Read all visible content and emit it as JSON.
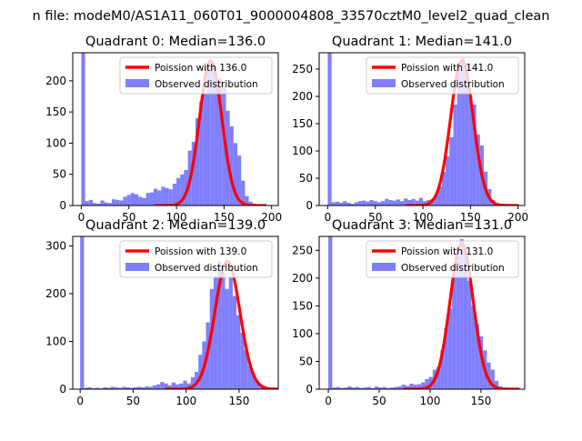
{
  "figure": {
    "suptitle": "n file: modeM0/AS1A11_060T01_9000004808_33570cztM0_level2_quad_clean"
  },
  "colors": {
    "hist": "#7f7fff",
    "poisson": "#ff0000",
    "axis": "#000000",
    "background": "#ffffff"
  },
  "chart_data": [
    {
      "type": "bar",
      "title": "Quadrant 0: Median=136.0",
      "xlim": [
        -9,
        207
      ],
      "ylim": [
        0,
        245
      ],
      "xticks": [
        0,
        50,
        100,
        150,
        200
      ],
      "xtick_labels": [
        "0",
        "50",
        "100",
        "150",
        "200"
      ],
      "yticks": [
        0,
        50,
        100,
        150,
        200
      ],
      "ytick_labels": [
        "0",
        "50",
        "100",
        "150",
        "200"
      ],
      "bin_width": 4,
      "bins_x": [
        0,
        4,
        8,
        12,
        16,
        20,
        24,
        28,
        32,
        36,
        40,
        44,
        48,
        52,
        56,
        60,
        64,
        68,
        72,
        76,
        80,
        84,
        88,
        92,
        96,
        100,
        104,
        108,
        112,
        116,
        120,
        124,
        128,
        132,
        136,
        140,
        144,
        148,
        152,
        156,
        160,
        164,
        168,
        172,
        176,
        180,
        184,
        188
      ],
      "bins_y": [
        245,
        7,
        9,
        4,
        3,
        8,
        5,
        4,
        10,
        9,
        8,
        14,
        17,
        20,
        18,
        14,
        12,
        20,
        21,
        27,
        24,
        30,
        28,
        26,
        35,
        44,
        50,
        57,
        88,
        102,
        140,
        167,
        179,
        225,
        225,
        199,
        204,
        193,
        152,
        127,
        100,
        80,
        40,
        15,
        6,
        3,
        2,
        1
      ],
      "legend": [
        "Poission with 136.0",
        "Observed distribution"
      ],
      "legend_position": "upper right",
      "poisson_mean": 136.0,
      "poisson_peak": 232,
      "poisson_sigma": 11.7
    },
    {
      "type": "bar",
      "title": "Quadrant 1: Median=141.0",
      "xlim": [
        -9,
        207
      ],
      "ylim": [
        0,
        280
      ],
      "xticks": [
        0,
        50,
        100,
        150,
        200
      ],
      "xtick_labels": [
        "0",
        "50",
        "100",
        "150",
        "200"
      ],
      "yticks": [
        0,
        50,
        100,
        150,
        200,
        250
      ],
      "ytick_labels": [
        "0",
        "50",
        "100",
        "150",
        "200",
        "250"
      ],
      "bin_width": 4,
      "bins_x": [
        0,
        4,
        8,
        12,
        16,
        20,
        24,
        28,
        32,
        36,
        40,
        44,
        48,
        52,
        56,
        60,
        64,
        68,
        72,
        76,
        80,
        84,
        88,
        92,
        96,
        100,
        104,
        108,
        112,
        116,
        120,
        124,
        128,
        132,
        136,
        140,
        144,
        148,
        152,
        156,
        160,
        164,
        168,
        172,
        176,
        180,
        184,
        188
      ],
      "bins_y": [
        280,
        6,
        7,
        5,
        8,
        5,
        3,
        6,
        8,
        9,
        7,
        10,
        8,
        6,
        8,
        12,
        10,
        9,
        11,
        8,
        13,
        10,
        12,
        9,
        14,
        8,
        10,
        12,
        20,
        35,
        62,
        90,
        125,
        185,
        250,
        270,
        258,
        200,
        185,
        130,
        110,
        62,
        30,
        10,
        4,
        2,
        1,
        1
      ],
      "legend": [
        "Poission with 141.0",
        "Observed distribution"
      ],
      "legend_position": "upper right",
      "poisson_mean": 141.0,
      "poisson_peak": 265,
      "poisson_sigma": 11.9
    },
    {
      "type": "bar",
      "title": "Quadrant 2: Median=139.0",
      "xlim": [
        -7,
        187
      ],
      "ylim": [
        0,
        320
      ],
      "xticks": [
        0,
        50,
        100,
        150
      ],
      "xtick_labels": [
        "0",
        "50",
        "100",
        "150"
      ],
      "yticks": [
        0,
        100,
        200,
        300
      ],
      "ytick_labels": [
        "0",
        "100",
        "200",
        "300"
      ],
      "bin_width": 3.6,
      "bins_x": [
        0,
        3.6,
        7.2,
        10.8,
        14.4,
        18,
        21.6,
        25.2,
        28.8,
        32.4,
        36,
        39.6,
        43.2,
        46.8,
        50.4,
        54,
        57.6,
        61.2,
        64.8,
        68.4,
        72,
        75.6,
        79.2,
        82.8,
        86.4,
        90,
        93.6,
        97.2,
        100.8,
        104.4,
        108,
        111.6,
        115.2,
        118.8,
        122.4,
        126,
        129.6,
        133.2,
        136.8,
        140.4,
        144,
        147.6,
        151.2,
        154.8,
        158.4,
        162,
        165.6,
        169.2,
        172.8
      ],
      "bins_y": [
        320,
        3,
        4,
        2,
        3,
        2,
        4,
        3,
        5,
        4,
        3,
        5,
        4,
        3,
        4,
        5,
        4,
        6,
        5,
        8,
        10,
        15,
        12,
        8,
        14,
        10,
        12,
        18,
        12,
        25,
        36,
        72,
        100,
        140,
        210,
        236,
        268,
        245,
        210,
        235,
        195,
        155,
        118,
        82,
        50,
        30,
        15,
        5,
        2
      ],
      "legend": [
        "Poission with 139.0",
        "Observed distribution"
      ],
      "legend_position": "upper right",
      "poisson_mean": 139.0,
      "poisson_peak": 268,
      "poisson_sigma": 11.8
    },
    {
      "type": "bar",
      "title": "Quadrant 3: Median=131.0",
      "xlim": [
        -9,
        193
      ],
      "ylim": [
        0,
        275
      ],
      "xticks": [
        0,
        50,
        100,
        150
      ],
      "xtick_labels": [
        "0",
        "50",
        "100",
        "150"
      ],
      "yticks": [
        0,
        50,
        100,
        150,
        200,
        250
      ],
      "ytick_labels": [
        "0",
        "50",
        "100",
        "150",
        "200",
        "250"
      ],
      "bin_width": 3.8,
      "bins_x": [
        0,
        3.8,
        7.6,
        11.4,
        15.2,
        19,
        22.8,
        26.6,
        30.4,
        34.2,
        38,
        41.8,
        45.6,
        49.4,
        53.2,
        57,
        60.8,
        64.6,
        68.4,
        72.2,
        76,
        79.8,
        83.6,
        87.4,
        91.2,
        95,
        98.8,
        102.6,
        106.4,
        110.2,
        114,
        117.8,
        121.6,
        125.4,
        129.2,
        133,
        136.8,
        140.6,
        144.4,
        148.2,
        152,
        155.8,
        159.6,
        163.4,
        167.2,
        171,
        174.8
      ],
      "bins_y": [
        275,
        3,
        4,
        2,
        3,
        5,
        3,
        4,
        2,
        3,
        4,
        2,
        5,
        3,
        4,
        2,
        3,
        4,
        5,
        8,
        6,
        10,
        8,
        9,
        12,
        18,
        22,
        35,
        40,
        70,
        110,
        145,
        210,
        240,
        270,
        258,
        195,
        150,
        118,
        95,
        70,
        48,
        35,
        15,
        5,
        2,
        1
      ],
      "legend": [
        "Poission with 131.0",
        "Observed distribution"
      ],
      "legend_position": "upper right",
      "poisson_mean": 131.0,
      "poisson_peak": 262,
      "poisson_sigma": 11.4
    }
  ]
}
